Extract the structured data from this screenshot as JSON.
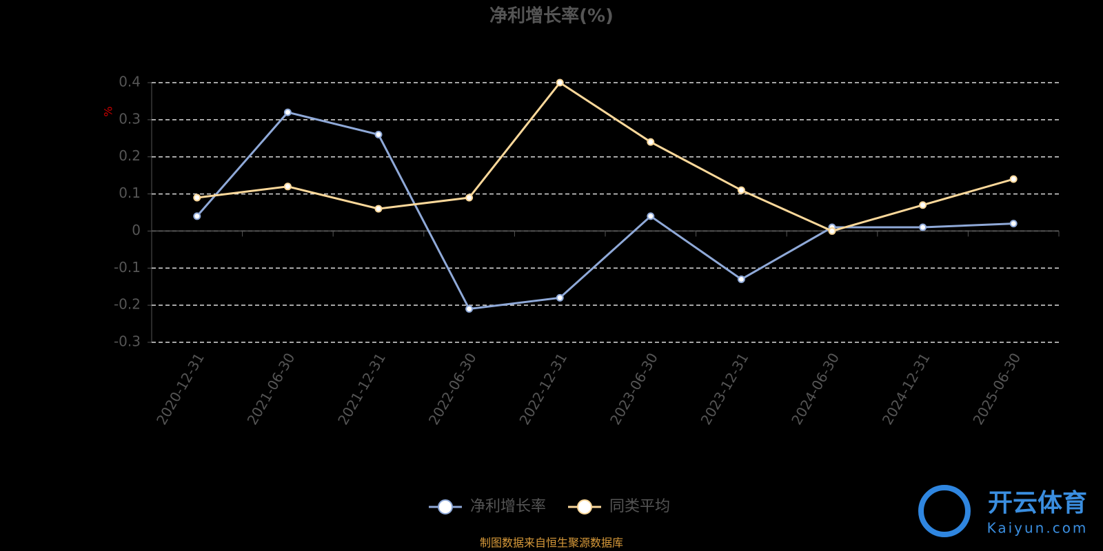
{
  "chart_data": {
    "type": "line",
    "title": "净利增长率(%)",
    "y_label": "%",
    "categories": [
      "2020-12-31",
      "2021-06-30",
      "2021-12-31",
      "2022-06-30",
      "2022-12-31",
      "2023-06-30",
      "2023-12-31",
      "2024-06-30",
      "2024-12-31",
      "2025-06-30"
    ],
    "series": [
      {
        "name": "净利增长率",
        "color": "#8fa9d8",
        "values": [
          0.04,
          0.32,
          0.26,
          -0.21,
          -0.18,
          0.04,
          -0.13,
          0.01,
          0.01,
          0.02
        ]
      },
      {
        "name": "同类平均",
        "color": "#fbd89a",
        "values": [
          0.09,
          0.12,
          0.06,
          0.09,
          0.4,
          0.24,
          0.11,
          0.0,
          0.07,
          0.14
        ]
      }
    ],
    "ylim": [
      -0.3,
      0.4
    ],
    "yticks": [
      -0.3,
      -0.2,
      -0.1,
      0,
      0.1,
      0.2,
      0.3,
      0.4
    ],
    "grid": true,
    "legend": "bottom",
    "source": "制图数据来自恒生聚源数据库",
    "watermark": {
      "name": "开云体育",
      "url": "Kaiyun.com"
    }
  }
}
